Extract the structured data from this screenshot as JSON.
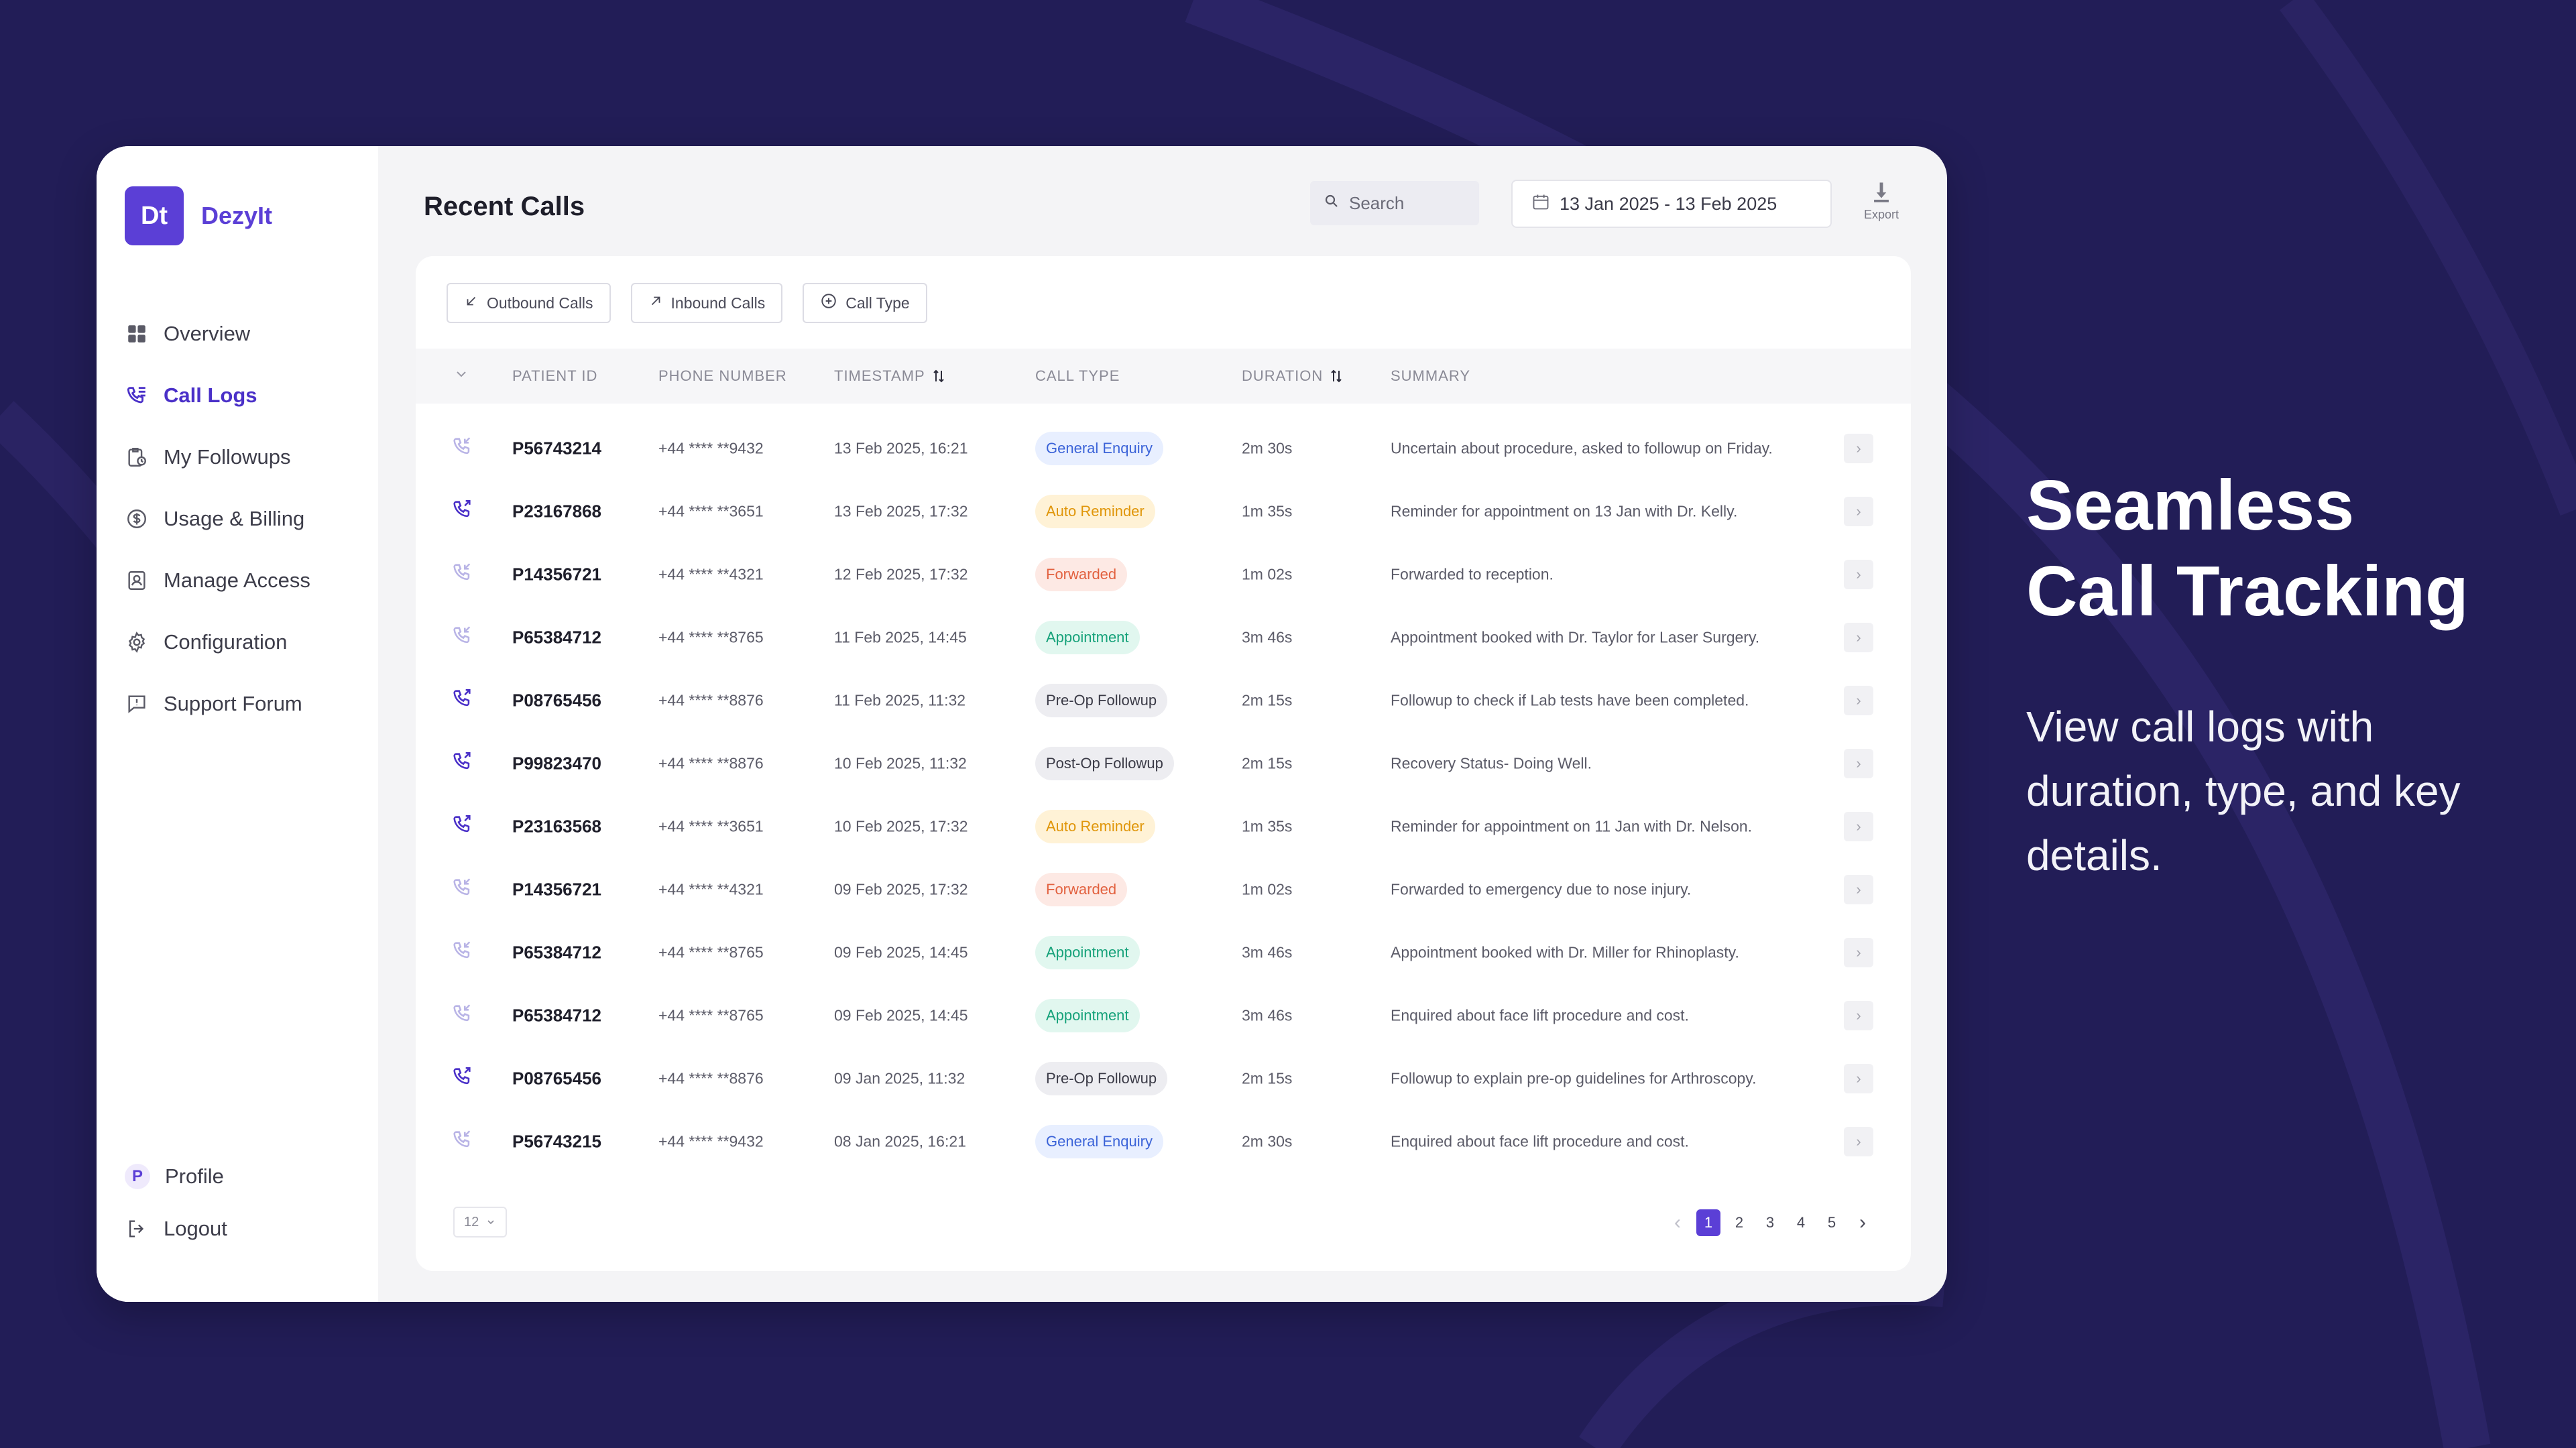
{
  "brand": {
    "logo_text": "Dt",
    "name": "DezyIt"
  },
  "sidebar": {
    "items": [
      {
        "label": "Overview",
        "icon": "grid-icon",
        "active": false
      },
      {
        "label": "Call Logs",
        "icon": "phone-list-icon",
        "active": true
      },
      {
        "label": "My Followups",
        "icon": "clipboard-clock-icon",
        "active": false
      },
      {
        "label": "Usage & Billing",
        "icon": "dollar-circle-icon",
        "active": false
      },
      {
        "label": "Manage Access",
        "icon": "id-card-icon",
        "active": false
      },
      {
        "label": "Configuration",
        "icon": "gear-icon",
        "active": false
      },
      {
        "label": "Support Forum",
        "icon": "chat-alert-icon",
        "active": false
      }
    ],
    "profile": {
      "initial": "P",
      "label": "Profile"
    },
    "logout_label": "Logout"
  },
  "header": {
    "title": "Recent Calls",
    "search_placeholder": "Search",
    "date_range": "13 Jan 2025 - 13 Feb 2025",
    "export_label": "Export"
  },
  "filters": [
    "Outbound Calls",
    "Inbound Calls",
    "Call Type"
  ],
  "table": {
    "columns": [
      "PATIENT ID",
      "PHONE NUMBER",
      "TIMESTAMP",
      "CALL TYPE",
      "DURATION",
      "SUMMARY"
    ],
    "rows": [
      {
        "direction": "inbound",
        "patient_id": "P56743214",
        "phone": "+44 **** **9432",
        "timestamp": "13 Feb 2025, 16:21",
        "type": "General Enquiry",
        "duration": "2m 30s",
        "summary": "Uncertain about procedure, asked to followup on Friday."
      },
      {
        "direction": "outbound",
        "patient_id": "P23167868",
        "phone": "+44 **** **3651",
        "timestamp": "13 Feb 2025, 17:32",
        "type": "Auto Reminder",
        "duration": "1m 35s",
        "summary": "Reminder for appointment on 13 Jan with Dr. Kelly."
      },
      {
        "direction": "inbound",
        "patient_id": "P14356721",
        "phone": "+44 **** **4321",
        "timestamp": "12 Feb 2025, 17:32",
        "type": "Forwarded",
        "duration": "1m 02s",
        "summary": "Forwarded to reception."
      },
      {
        "direction": "inbound",
        "patient_id": "P65384712",
        "phone": "+44 **** **8765",
        "timestamp": "11 Feb 2025, 14:45",
        "type": "Appointment",
        "duration": "3m 46s",
        "summary": "Appointment booked with Dr. Taylor for Laser Surgery."
      },
      {
        "direction": "outbound",
        "patient_id": "P08765456",
        "phone": "+44 **** **8876",
        "timestamp": "11 Feb 2025, 11:32",
        "type": "Pre-Op Followup",
        "duration": "2m 15s",
        "summary": "Followup to check if Lab tests have been completed."
      },
      {
        "direction": "outbound",
        "patient_id": "P99823470",
        "phone": "+44 **** **8876",
        "timestamp": "10 Feb 2025, 11:32",
        "type": "Post-Op Followup",
        "duration": "2m 15s",
        "summary": "Recovery Status- Doing Well."
      },
      {
        "direction": "outbound",
        "patient_id": "P23163568",
        "phone": "+44 **** **3651",
        "timestamp": "10 Feb 2025, 17:32",
        "type": "Auto Reminder",
        "duration": "1m 35s",
        "summary": "Reminder for appointment on 11 Jan with Dr. Nelson."
      },
      {
        "direction": "inbound",
        "patient_id": "P14356721",
        "phone": "+44 **** **4321",
        "timestamp": "09 Feb 2025, 17:32",
        "type": "Forwarded",
        "duration": "1m 02s",
        "summary": "Forwarded to emergency due to nose injury."
      },
      {
        "direction": "inbound",
        "patient_id": "P65384712",
        "phone": "+44 **** **8765",
        "timestamp": "09 Feb 2025, 14:45",
        "type": "Appointment",
        "duration": "3m 46s",
        "summary": "Appointment booked with Dr. Miller for Rhinoplasty."
      },
      {
        "direction": "inbound",
        "patient_id": "P65384712",
        "phone": "+44 **** **8765",
        "timestamp": "09 Feb 2025, 14:45",
        "type": "Appointment",
        "duration": "3m 46s",
        "summary": "Enquired about face lift procedure and cost."
      },
      {
        "direction": "outbound",
        "patient_id": "P08765456",
        "phone": "+44 **** **8876",
        "timestamp": "09 Jan 2025, 11:32",
        "type": "Pre-Op Followup",
        "duration": "2m 15s",
        "summary": "Followup to explain pre-op guidelines for Arthroscopy."
      },
      {
        "direction": "inbound",
        "patient_id": "P56743215",
        "phone": "+44 **** **9432",
        "timestamp": "08 Jan 2025, 16:21",
        "type": "General Enquiry",
        "duration": "2m 30s",
        "summary": "Enquired about face lift procedure and cost."
      }
    ]
  },
  "badge_colors": {
    "General Enquiry": {
      "bg": "#e8efff",
      "fg": "#3b63d8"
    },
    "Auto Reminder": {
      "bg": "#fff2d6",
      "fg": "#e0960a"
    },
    "Forwarded": {
      "bg": "#fde9e4",
      "fg": "#e2613f"
    },
    "Appointment": {
      "bg": "#e1f7ef",
      "fg": "#16a27a"
    },
    "Pre-Op Followup": {
      "bg": "#ededf1",
      "fg": "#3a3a46"
    },
    "Post-Op Followup": {
      "bg": "#ededf1",
      "fg": "#3a3a46"
    }
  },
  "direction_colors": {
    "inbound": "#b9b4e6",
    "outbound": "#4a30c8"
  },
  "footer": {
    "page_size": "12",
    "pages": [
      "1",
      "2",
      "3",
      "4",
      "5"
    ],
    "current_page": "1"
  },
  "hero": {
    "title_line1": "Seamless",
    "title_line2": "Call Tracking",
    "subtitle": "View call logs with duration, type, and key details."
  },
  "colors": {
    "background": "#221d57",
    "accent": "#5b3fd6"
  }
}
